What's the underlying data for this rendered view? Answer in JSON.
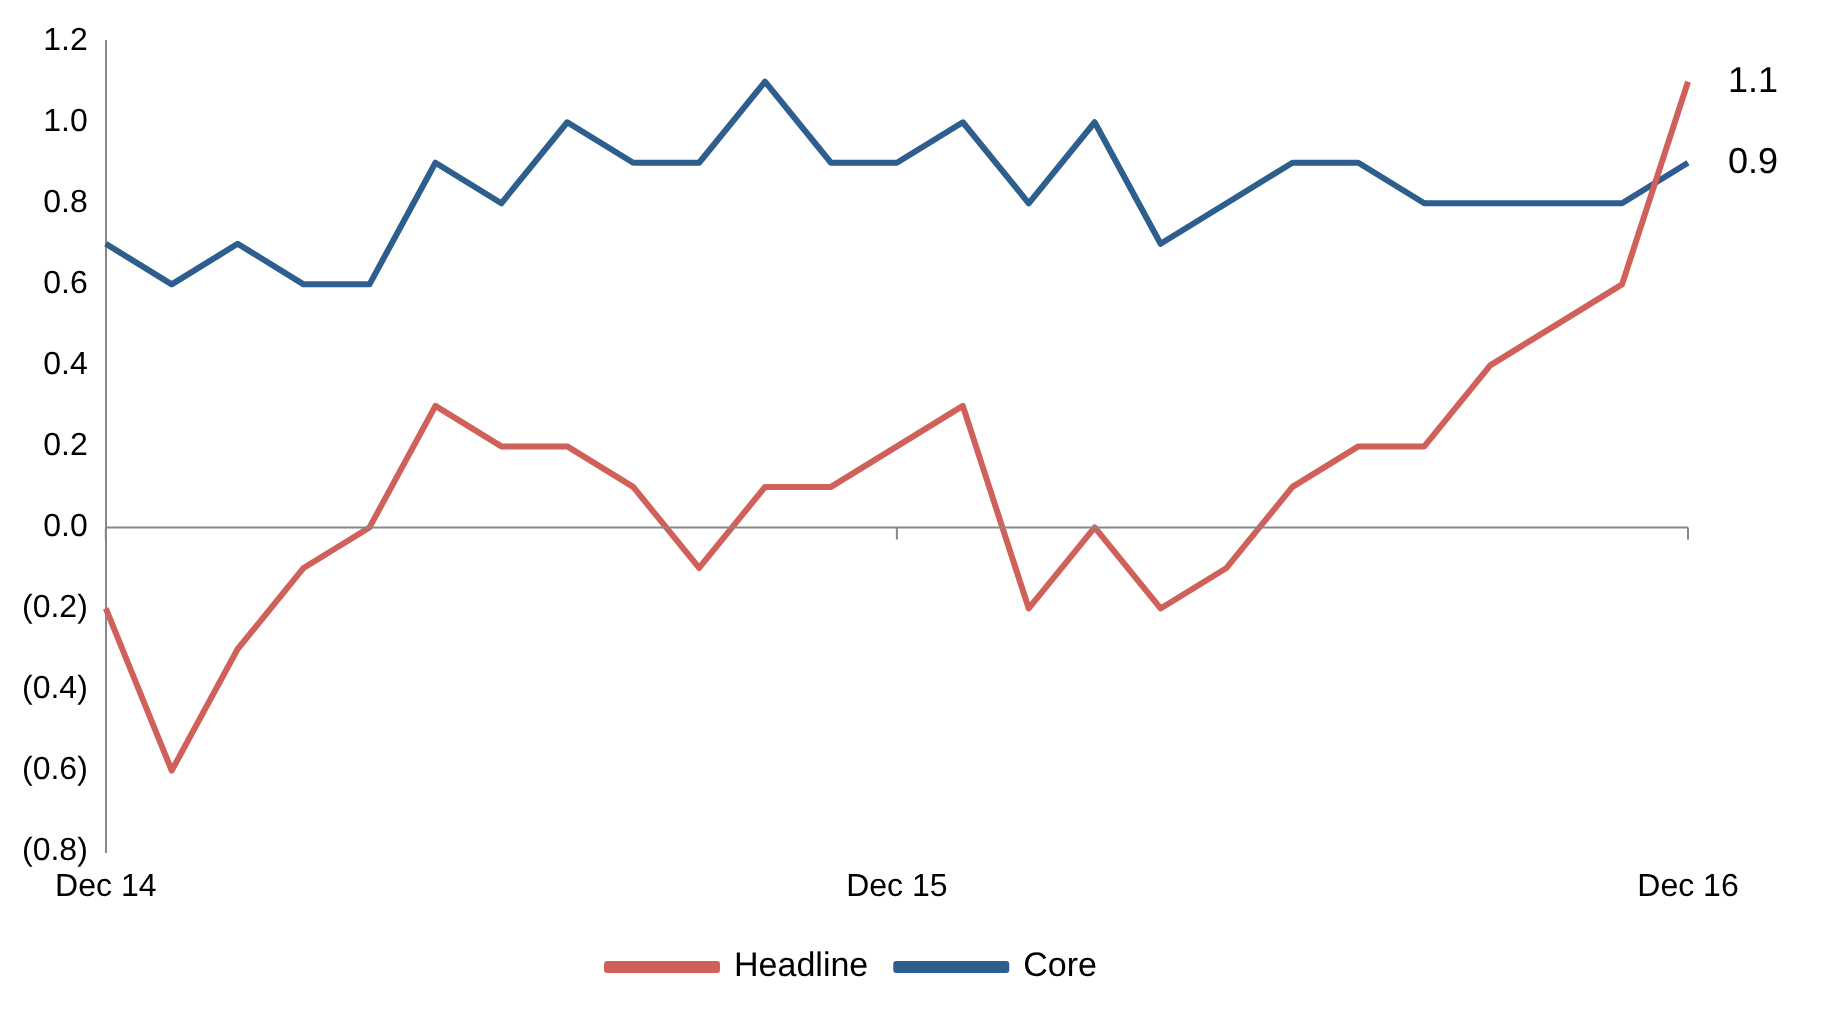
{
  "chart_data": {
    "type": "line",
    "categories": [
      "Dec 14",
      null,
      null,
      null,
      null,
      null,
      null,
      null,
      null,
      null,
      null,
      null,
      "Dec 15",
      null,
      null,
      null,
      null,
      null,
      null,
      null,
      null,
      null,
      null,
      null,
      "Dec 16"
    ],
    "series": [
      {
        "name": "Headline",
        "color": "#d0605a",
        "values": [
          -0.2,
          -0.6,
          -0.3,
          -0.1,
          0,
          0.3,
          0.2,
          0.2,
          0.1,
          -0.1,
          0.1,
          0.1,
          0.2,
          0.3,
          -0.2,
          0,
          -0.2,
          -0.1,
          0.1,
          0.2,
          0.2,
          0.4,
          0.5,
          0.6,
          1.1
        ],
        "value_labels": [
          null,
          null,
          null,
          null,
          null,
          null,
          null,
          null,
          null,
          null,
          null,
          null,
          null,
          null,
          null,
          null,
          null,
          null,
          null,
          null,
          null,
          null,
          null,
          null,
          "1.1"
        ]
      },
      {
        "name": "Core",
        "color": "#2e5e8e",
        "values": [
          0.7,
          0.6,
          0.7,
          0.6,
          0.6,
          0.9,
          0.8,
          1.0,
          0.9,
          0.9,
          1.1,
          0.9,
          0.9,
          1.0,
          0.8,
          1.0,
          0.7,
          0.8,
          0.9,
          0.9,
          0.8,
          0.8,
          0.8,
          0.8,
          0.9
        ],
        "value_labels": [
          null,
          null,
          null,
          null,
          null,
          null,
          null,
          null,
          null,
          null,
          null,
          null,
          null,
          null,
          null,
          null,
          null,
          null,
          null,
          null,
          null,
          null,
          null,
          null,
          "0.9"
        ]
      }
    ],
    "ylim": [
      -0.8,
      1.2
    ],
    "yticks": [
      {
        "value": -0.8,
        "label": "(0.8)"
      },
      {
        "value": -0.6,
        "label": "(0.6)"
      },
      {
        "value": -0.4,
        "label": "(0.4)"
      },
      {
        "value": -0.2,
        "label": "(0.2)"
      },
      {
        "value": 0,
        "label": "0.0"
      },
      0.2,
      0.4,
      0.6,
      0.8,
      {
        "value": 1,
        "label": "1.0"
      },
      1.2
    ],
    "marker": "none",
    "legend": "bottom"
  }
}
